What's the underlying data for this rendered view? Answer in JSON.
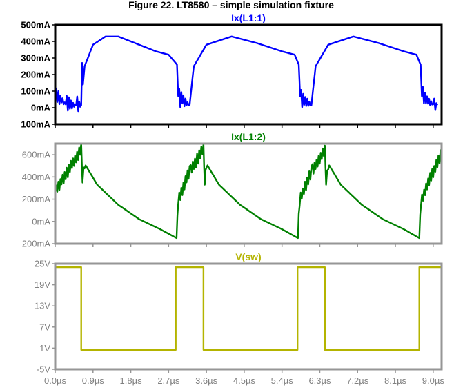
{
  "title": "Figure 22. LT8580 – simple simulation fixture",
  "chart_data": [
    {
      "type": "line",
      "title": "Ix(L1:1)",
      "color": "#0000ff",
      "frame_color": "#000000",
      "label_color": "#000000",
      "ylim": [
        -100,
        500
      ],
      "yticks": [
        "500mA",
        "400mA",
        "300mA",
        "200mA",
        "100mA",
        "0mA",
        "100mA"
      ],
      "ytick_values": [
        500,
        400,
        300,
        200,
        100,
        0,
        -100
      ],
      "x_us": [
        0.0,
        0.25,
        0.5,
        0.62,
        0.64,
        0.66,
        0.7,
        0.9,
        1.2,
        1.5,
        1.8,
        2.1,
        2.4,
        2.7,
        2.9,
        2.93,
        3.2,
        3.3,
        3.6,
        4.2,
        4.8,
        5.4,
        5.7,
        5.8,
        5.83,
        6.1,
        6.2,
        6.5,
        7.1,
        7.7,
        8.3,
        8.6,
        8.7,
        8.73,
        9.0,
        9.1
      ],
      "values_mA": [
        90,
        20,
        15,
        15,
        270,
        140,
        250,
        380,
        430,
        430,
        400,
        370,
        340,
        320,
        260,
        70,
        15,
        250,
        380,
        430,
        390,
        340,
        320,
        260,
        70,
        15,
        250,
        380,
        430,
        390,
        340,
        320,
        260,
        70,
        20,
        15
      ]
    },
    {
      "type": "line",
      "title": "Ix(L1:2)",
      "color": "#008000",
      "frame_color": "#969696",
      "label_color": "#808080",
      "ylim": [
        -200,
        700
      ],
      "yticks": [
        "600mA",
        "400mA",
        "200mA",
        "0mA",
        "200mA"
      ],
      "ytick_values": [
        600,
        400,
        200,
        0,
        -200
      ],
      "x_us": [
        0.0,
        0.3,
        0.62,
        0.65,
        0.7,
        1.0,
        1.5,
        2.0,
        2.5,
        2.89,
        2.93,
        3.2,
        3.53,
        3.56,
        3.6,
        3.9,
        4.4,
        4.9,
        5.4,
        5.78,
        5.82,
        6.1,
        6.42,
        6.45,
        6.5,
        6.8,
        7.3,
        7.8,
        8.3,
        8.67,
        8.71,
        9.0,
        9.2
      ],
      "values_mA": [
        280,
        450,
        650,
        350,
        520,
        330,
        150,
        20,
        -70,
        -150,
        190,
        450,
        650,
        330,
        520,
        330,
        150,
        20,
        -70,
        -150,
        190,
        450,
        650,
        330,
        520,
        330,
        150,
        20,
        -70,
        -150,
        190,
        450,
        610
      ]
    },
    {
      "type": "line",
      "title": "V(sw)",
      "color": "#b4b400",
      "frame_color": "#969696",
      "label_color": "#808080",
      "ylim": [
        -5,
        25
      ],
      "yticks": [
        "25V",
        "19V",
        "13V",
        "7V",
        "1V",
        "-5V"
      ],
      "ytick_values": [
        25,
        19,
        13,
        7,
        1,
        -5
      ],
      "x_us": [
        0.0,
        0.62,
        0.62,
        2.87,
        2.87,
        3.53,
        3.53,
        5.77,
        5.77,
        6.42,
        6.42,
        8.67,
        8.67,
        9.2
      ],
      "values_V": [
        24,
        24,
        0.5,
        0.5,
        24,
        24,
        0.5,
        0.5,
        24,
        24,
        0.5,
        0.5,
        24,
        24
      ],
      "xlim": [
        0.0,
        9.2
      ],
      "xticks": [
        "0.0µs",
        "0.9µs",
        "1.8µs",
        "2.7µs",
        "3.6µs",
        "4.5µs",
        "5.4µs",
        "6.3µs",
        "7.2µs",
        "8.1µs",
        "9.0µs"
      ],
      "xtick_values": [
        0.0,
        0.9,
        1.8,
        2.7,
        3.6,
        4.5,
        5.4,
        6.3,
        7.2,
        8.1,
        9.0
      ]
    }
  ]
}
